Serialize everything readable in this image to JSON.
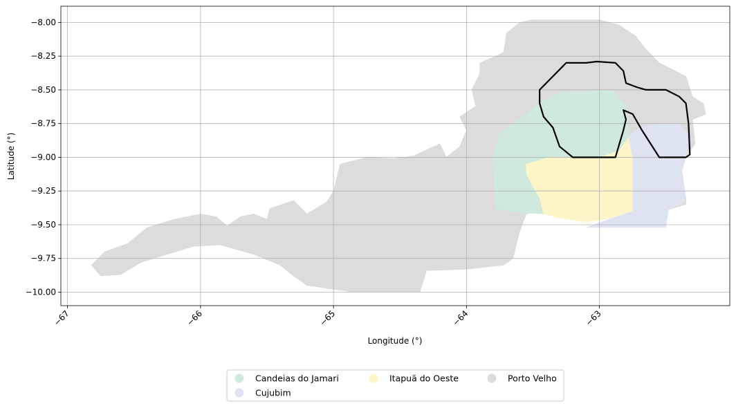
{
  "chart_data": {
    "type": "map",
    "xlabel": "Longitude (°)",
    "ylabel": "Latitude (°)",
    "xlim": [
      -67.05,
      -62.02
    ],
    "ylim": [
      -10.1,
      -7.88
    ],
    "xticks": [
      {
        "value": -67,
        "label": "−67"
      },
      {
        "value": -66,
        "label": "−66"
      },
      {
        "value": -65,
        "label": "−65"
      },
      {
        "value": -64,
        "label": "−64"
      },
      {
        "value": -63,
        "label": "−63"
      }
    ],
    "yticks": [
      {
        "value": -8.0,
        "label": "−8.00"
      },
      {
        "value": -8.25,
        "label": "−8.25"
      },
      {
        "value": -8.5,
        "label": "−8.50"
      },
      {
        "value": -8.75,
        "label": "−8.75"
      },
      {
        "value": -9.0,
        "label": "−9.00"
      },
      {
        "value": -9.25,
        "label": "−9.25"
      },
      {
        "value": -9.5,
        "label": "−9.50"
      },
      {
        "value": -9.75,
        "label": "−9.75"
      },
      {
        "value": -10.0,
        "label": "−10.00"
      }
    ],
    "grid": true,
    "legend_position": "bottom-center",
    "regions": [
      {
        "name": "Porto Velho",
        "color": "#dcdcdc",
        "polygon": [
          [
            -66.82,
            -9.8
          ],
          [
            -66.72,
            -9.7
          ],
          [
            -66.55,
            -9.64
          ],
          [
            -66.4,
            -9.52
          ],
          [
            -66.2,
            -9.46
          ],
          [
            -66.0,
            -9.42
          ],
          [
            -65.88,
            -9.44
          ],
          [
            -65.8,
            -9.51
          ],
          [
            -65.7,
            -9.44
          ],
          [
            -65.6,
            -9.42
          ],
          [
            -65.5,
            -9.46
          ],
          [
            -65.48,
            -9.38
          ],
          [
            -65.3,
            -9.32
          ],
          [
            -65.2,
            -9.42
          ],
          [
            -65.05,
            -9.33
          ],
          [
            -65.0,
            -9.25
          ],
          [
            -64.95,
            -9.05
          ],
          [
            -64.75,
            -9.0
          ],
          [
            -64.55,
            -9.01
          ],
          [
            -64.4,
            -8.99
          ],
          [
            -64.2,
            -8.9
          ],
          [
            -64.15,
            -9.0
          ],
          [
            -64.05,
            -8.92
          ],
          [
            -64.0,
            -8.8
          ],
          [
            -64.05,
            -8.7
          ],
          [
            -63.93,
            -8.62
          ],
          [
            -63.96,
            -8.5
          ],
          [
            -63.9,
            -8.38
          ],
          [
            -63.9,
            -8.3
          ],
          [
            -63.78,
            -8.25
          ],
          [
            -63.72,
            -8.22
          ],
          [
            -63.7,
            -8.08
          ],
          [
            -63.6,
            -8.0
          ],
          [
            -63.5,
            -7.98
          ],
          [
            -63.0,
            -7.98
          ],
          [
            -62.85,
            -8.02
          ],
          [
            -62.73,
            -8.1
          ],
          [
            -62.65,
            -8.2
          ],
          [
            -62.55,
            -8.3
          ],
          [
            -62.45,
            -8.35
          ],
          [
            -62.35,
            -8.4
          ],
          [
            -62.3,
            -8.55
          ],
          [
            -62.22,
            -8.6
          ],
          [
            -62.2,
            -8.68
          ],
          [
            -62.3,
            -8.72
          ],
          [
            -62.28,
            -8.9
          ],
          [
            -62.35,
            -9.0
          ],
          [
            -62.38,
            -9.1
          ],
          [
            -62.35,
            -9.3
          ],
          [
            -62.35,
            -9.35
          ],
          [
            -62.6,
            -9.42
          ],
          [
            -63.0,
            -9.45
          ],
          [
            -63.3,
            -9.42
          ],
          [
            -63.45,
            -9.4
          ],
          [
            -63.55,
            -9.42
          ],
          [
            -63.6,
            -9.55
          ],
          [
            -63.65,
            -9.75
          ],
          [
            -63.72,
            -9.8
          ],
          [
            -64.0,
            -9.83
          ],
          [
            -64.3,
            -9.84
          ],
          [
            -64.35,
            -10.0
          ],
          [
            -64.85,
            -10.0
          ],
          [
            -65.2,
            -9.95
          ],
          [
            -65.3,
            -9.88
          ],
          [
            -65.4,
            -9.8
          ],
          [
            -65.6,
            -9.72
          ],
          [
            -65.85,
            -9.65
          ],
          [
            -66.05,
            -9.66
          ],
          [
            -66.25,
            -9.72
          ],
          [
            -66.45,
            -9.78
          ],
          [
            -66.6,
            -9.87
          ],
          [
            -66.75,
            -9.88
          ]
        ]
      },
      {
        "name": "Candeias do Jamari",
        "color": "#cfeadd",
        "polygon": [
          [
            -63.8,
            -9.0
          ],
          [
            -63.75,
            -8.82
          ],
          [
            -63.6,
            -8.72
          ],
          [
            -63.45,
            -8.6
          ],
          [
            -63.3,
            -8.52
          ],
          [
            -62.9,
            -8.5
          ],
          [
            -62.8,
            -8.62
          ],
          [
            -62.78,
            -8.85
          ],
          [
            -62.85,
            -8.95
          ],
          [
            -63.0,
            -9.0
          ],
          [
            -63.22,
            -9.0
          ],
          [
            -63.38,
            -9.02
          ],
          [
            -63.42,
            -9.08
          ],
          [
            -63.5,
            -9.07
          ],
          [
            -63.55,
            -9.12
          ],
          [
            -63.5,
            -9.22
          ],
          [
            -63.45,
            -9.3
          ],
          [
            -63.42,
            -9.42
          ],
          [
            -63.6,
            -9.41
          ],
          [
            -63.78,
            -9.38
          ]
        ]
      },
      {
        "name": "Itapuã do Oeste",
        "color": "#fdf5c8",
        "polygon": [
          [
            -63.55,
            -9.05
          ],
          [
            -63.38,
            -9.0
          ],
          [
            -63.22,
            -9.0
          ],
          [
            -63.0,
            -9.0
          ],
          [
            -62.85,
            -8.95
          ],
          [
            -62.78,
            -8.85
          ],
          [
            -62.75,
            -9.0
          ],
          [
            -62.75,
            -9.4
          ],
          [
            -62.9,
            -9.45
          ],
          [
            -63.1,
            -9.48
          ],
          [
            -63.3,
            -9.45
          ],
          [
            -63.42,
            -9.42
          ],
          [
            -63.45,
            -9.3
          ],
          [
            -63.5,
            -9.22
          ],
          [
            -63.55,
            -9.12
          ]
        ]
      },
      {
        "name": "Cujubim",
        "color": "#dde3f1",
        "polygon": [
          [
            -62.78,
            -8.85
          ],
          [
            -62.7,
            -8.78
          ],
          [
            -62.55,
            -8.75
          ],
          [
            -62.4,
            -8.75
          ],
          [
            -62.32,
            -8.85
          ],
          [
            -62.35,
            -9.0
          ],
          [
            -62.38,
            -9.1
          ],
          [
            -62.35,
            -9.3
          ],
          [
            -62.38,
            -9.35
          ],
          [
            -62.48,
            -9.38
          ],
          [
            -62.5,
            -9.52
          ],
          [
            -62.8,
            -9.52
          ],
          [
            -63.1,
            -9.52
          ],
          [
            -62.9,
            -9.45
          ],
          [
            -62.75,
            -9.4
          ],
          [
            -62.75,
            -9.0
          ]
        ]
      }
    ],
    "outline": [
      [
        -63.45,
        -8.5
      ],
      [
        -63.35,
        -8.4
      ],
      [
        -63.3,
        -8.35
      ],
      [
        -63.25,
        -8.3
      ],
      [
        -63.1,
        -8.3
      ],
      [
        -63.02,
        -8.29
      ],
      [
        -62.88,
        -8.3
      ],
      [
        -62.82,
        -8.36
      ],
      [
        -62.8,
        -8.45
      ],
      [
        -62.72,
        -8.48
      ],
      [
        -62.65,
        -8.5
      ],
      [
        -62.5,
        -8.5
      ],
      [
        -62.4,
        -8.55
      ],
      [
        -62.35,
        -8.6
      ],
      [
        -62.33,
        -8.75
      ],
      [
        -62.32,
        -8.98
      ],
      [
        -62.35,
        -9.0
      ],
      [
        -62.55,
        -9.0
      ],
      [
        -62.68,
        -8.8
      ],
      [
        -62.75,
        -8.68
      ],
      [
        -62.82,
        -8.65
      ],
      [
        -62.8,
        -8.72
      ],
      [
        -62.82,
        -8.8
      ],
      [
        -62.85,
        -8.9
      ],
      [
        -62.88,
        -9.0
      ],
      [
        -62.9,
        -9.0
      ],
      [
        -63.2,
        -9.0
      ],
      [
        -63.3,
        -8.92
      ],
      [
        -63.35,
        -8.78
      ],
      [
        -63.42,
        -8.7
      ],
      [
        -63.45,
        -8.6
      ]
    ],
    "legend": [
      {
        "label": "Candeias do Jamari",
        "color": "#cfeadd"
      },
      {
        "label": "Cujubim",
        "color": "#dde3f1"
      },
      {
        "label": "Itapuã do Oeste",
        "color": "#fdf5c8"
      },
      {
        "label": "Porto Velho",
        "color": "#dcdcdc"
      }
    ]
  }
}
